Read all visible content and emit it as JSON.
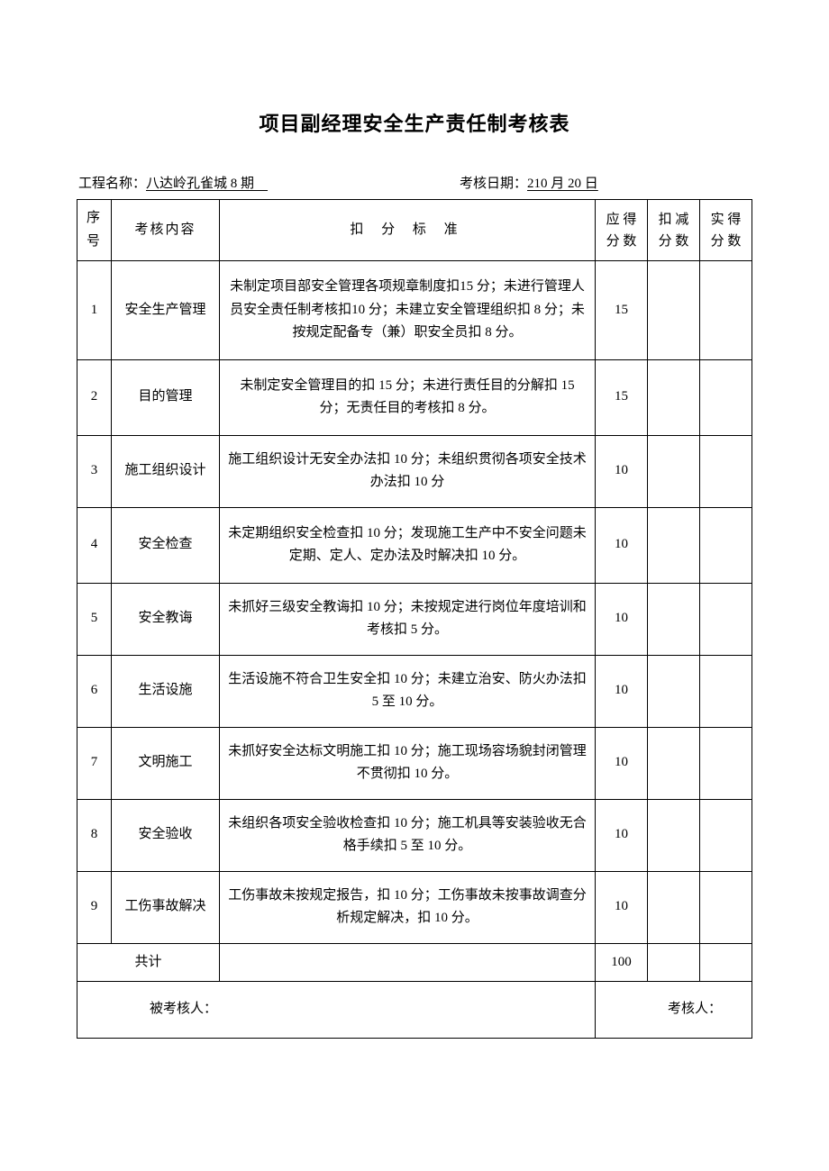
{
  "title": "项目副经理安全生产责任制考核表",
  "header": {
    "project_label": "工程名称：",
    "project_value": "八达岭孔雀城 8 期　",
    "date_label": "考核日期：",
    "date_value": "210 月 20 日"
  },
  "columns": {
    "seq": "序号",
    "content": "考核内容",
    "criteria": "扣 分 标 准",
    "should_score": "应 得分 数",
    "deduct_score": "扣 减分 数",
    "actual_score": "实 得分 数"
  },
  "rows": [
    {
      "seq": "1",
      "content": "安全生产管理",
      "criteria": "未制定项目部安全管理各项规章制度扣15 分；未进行管理人员安全责任制考核扣10 分；未建立安全管理组织扣 8 分；未按规定配备专（兼）职安全员扣 8 分。",
      "should": "15",
      "deduct": "",
      "actual": ""
    },
    {
      "seq": "2",
      "content": "目的管理",
      "criteria": "未制定安全管理目的扣 15 分；未进行责任目的分解扣 15 分；无责任目的考核扣 8 分。",
      "should": "15",
      "deduct": "",
      "actual": ""
    },
    {
      "seq": "3",
      "content": "施工组织设计",
      "criteria": "施工组织设计无安全办法扣 10 分；未组织贯彻各项安全技术办法扣 10 分",
      "should": "10",
      "deduct": "",
      "actual": ""
    },
    {
      "seq": "4",
      "content": "安全检查",
      "criteria": "未定期组织安全检查扣 10 分；发现施工生产中不安全问题未定期、定人、定办法及时解决扣 10 分。",
      "should": "10",
      "deduct": "",
      "actual": ""
    },
    {
      "seq": "5",
      "content": "安全教诲",
      "criteria": "未抓好三级安全教诲扣 10 分；未按规定进行岗位年度培训和考核扣 5 分。",
      "should": "10",
      "deduct": "",
      "actual": ""
    },
    {
      "seq": "6",
      "content": "生活设施",
      "criteria": "生活设施不符合卫生安全扣 10 分；未建立治安、防火办法扣 5 至 10 分。",
      "should": "10",
      "deduct": "",
      "actual": ""
    },
    {
      "seq": "7",
      "content": "文明施工",
      "criteria": "未抓好安全达标文明施工扣 10 分；施工现场容场貌封闭管理不贯彻扣 10 分。",
      "should": "10",
      "deduct": "",
      "actual": ""
    },
    {
      "seq": "8",
      "content": "安全验收",
      "criteria": "未组织各项安全验收检查扣 10 分；施工机具等安装验收无合格手续扣 5 至 10 分。",
      "should": "10",
      "deduct": "",
      "actual": ""
    },
    {
      "seq": "9",
      "content": "工伤事故解决",
      "criteria": "工伤事故未按规定报告，扣 10 分；工伤事故未按事故调查分析规定解决，扣 10 分。",
      "should": "10",
      "deduct": "",
      "actual": ""
    }
  ],
  "total": {
    "label": "共计",
    "should": "100",
    "deduct": "",
    "actual": ""
  },
  "footer": {
    "assessee": "被考核人：",
    "assessor": "考核人："
  },
  "style": {
    "font_family": "SimSun",
    "title_fontsize": 22,
    "body_fontsize": 15,
    "border_color": "#000000",
    "background_color": "#ffffff",
    "text_color": "#000000"
  }
}
